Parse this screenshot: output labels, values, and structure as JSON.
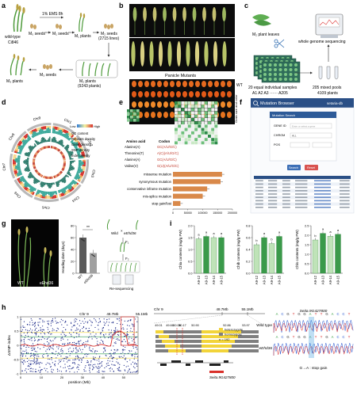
{
  "panels": {
    "a": {
      "letter": "a",
      "wild_type": "wild-type",
      "cultivar": "Ci846",
      "ems": "1% EMS 8h",
      "m0_seeds": "M₀ seeds",
      "m1_seeds": "M₁ seeds",
      "m1_plants": "M₁ plants",
      "m2_seeds": "M₂ seeds",
      "m2_lines": "(2715 lines)",
      "m3_plants": "M₃ plants",
      "m3_seeds": "M₃ seeds",
      "m2_plants": "M₂ plants",
      "m2_count": "(9243 plants)"
    },
    "b": {
      "letter": "b",
      "panicle_mutants": "Panicle Mutants",
      "wt": "WT",
      "side": "Grain size and color"
    },
    "c": {
      "letter": "c",
      "leaves": "M₂ plant leaves",
      "pools_left": "20 equal individual samples",
      "pools_ids": "A1 A2 A3 ······ A205",
      "pools_right": "205 mixed pools",
      "plants": "4109 plants",
      "wgs": "whole genome sequencing"
    },
    "d": {
      "letter": "d",
      "chromosomes": [
        "Chr1",
        "Chr2",
        "Chr3",
        "Chr4",
        "Chr5",
        "Chr6",
        "Chr7",
        "Chr8",
        "Chr9"
      ],
      "legend_low": "Low",
      "legend_high": "High",
      "tracks": [
        "GC content",
        "Repeats density",
        "Gene density",
        "SNP density",
        "Indel density"
      ]
    },
    "e": {
      "letter": "e",
      "amino_acid": "Amino acid",
      "codon": "Codon",
      "rows": [
        {
          "aa": "Alanine(A)",
          "codon": "GC(A/U/G/C)"
        },
        {
          "aa": "Threonine(T)",
          "codon": "A(C)(A/U/G/C)"
        },
        {
          "aa": "Alanine(A)",
          "codon": "GC(A/U/G/C)"
        },
        {
          "aa": "Valine(V)",
          "codon": "G(U)(A/U/G/C)"
        }
      ],
      "xaxis_ticks": [
        "0",
        "50000",
        "100000",
        "150000",
        "200000"
      ]
    },
    "f": {
      "letter": "f",
      "browser_title": "Mutation Browser",
      "logo": "setaria-db",
      "search_head": "Mutation Search",
      "gene_label": "GENE ID",
      "gene_placeholder": "Enter or select a gene",
      "chrom_label": "CHROM",
      "chrom_value": "ALL",
      "pos_label": "POS",
      "search_btn": "Search",
      "reset_btn": "Reset"
    },
    "g": {
      "letter": "g",
      "wt": "WT",
      "mut": "eEhd36",
      "ylabel": "Heading date (days)",
      "sig": "**",
      "y_ticks": [
        "0",
        "20",
        "40",
        "60",
        "80"
      ],
      "x_wt": "WT",
      "x_mut": "eEhd36",
      "cross_wild": "Wild",
      "cross_mut": "eEhd36",
      "f1": "F₁",
      "f2": "F₂",
      "reseq": "Re-sequencing"
    },
    "h": {
      "letter": "h",
      "ylabel": "ΔSNP-index",
      "xlabel": "position (Mb)",
      "x_ticks": [
        "0",
        "10",
        "20",
        "30",
        "40",
        "50"
      ],
      "y_ticks": [
        "-1",
        "-0.5",
        "0",
        "0.5",
        "1"
      ],
      "chr": "Chr 9",
      "mark1": "48.7Mb",
      "mark2": "55.1Mb",
      "zoom_chr": "Chr 9",
      "zoom_left": "48.7Mb",
      "zoom_right": "55.1Mb",
      "positions_top": [
        "49.01",
        "49.66",
        "50.08",
        "50.17",
        "50.90",
        "52.86",
        "53.97"
      ],
      "leg_het": "heterozygote",
      "leg_hom": "homozygote",
      "leg_n": "n = 192",
      "gene": "Seita.9G427800",
      "seq_gene": "Seita.9G427800",
      "wild_type": "Wild type",
      "mutant": "eEhd36",
      "stop_gain": "G→A : stop gain"
    },
    "i": {
      "letter": "i",
      "ylabels": [
        "Chla contents (mg/g FW)",
        "Chlb contents (mg/g FW)",
        "Chls contents (mg/g FW)"
      ],
      "y_ticks_a": [
        "0.0",
        "0.5",
        "1.0",
        "1.5",
        "2.0"
      ],
      "y_ticks_b": [
        "0.0",
        "0.2",
        "0.4",
        "0.6",
        "0.8"
      ],
      "y_ticks_c": [
        "0.0",
        "0.5",
        "1.0",
        "1.5",
        "2.0",
        "2.5"
      ]
    }
  },
  "chart_data": [
    {
      "type": "bar",
      "panel": "e",
      "categories": [
        "missense mutation",
        "synonymous mutation",
        "conservative inframe mutation",
        "mis-splice mutation",
        "stop gain/lost"
      ],
      "values": [
        165000,
        160000,
        115000,
        100000,
        25000
      ],
      "xlim": [
        0,
        200000
      ]
    },
    {
      "type": "bar",
      "panel": "g",
      "categories": [
        "WT",
        "eEhd36"
      ],
      "values": [
        60,
        34
      ],
      "ylim": [
        0,
        80
      ],
      "ylabel": "Heading date (days)"
    },
    {
      "type": "bar",
      "panel": "i",
      "ylabel": "Chla contents (mg/g FW)",
      "categories": [
        "A9-12",
        "A9-13",
        "A9-14",
        "A9-15"
      ],
      "values": [
        1.45,
        1.55,
        1.5,
        1.5
      ],
      "letters": [
        "a",
        "a",
        "a",
        "a"
      ],
      "ylim": [
        0,
        2.0
      ]
    },
    {
      "type": "bar",
      "panel": "i",
      "ylabel": "Chlb contents (mg/g FW)",
      "categories": [
        "A9-12",
        "A9-13",
        "A9-14",
        "A9-15"
      ],
      "values": [
        0.48,
        0.6,
        0.5,
        0.62
      ],
      "letters": [
        "b",
        "a",
        "b",
        "a"
      ],
      "ylim": [
        0,
        0.8
      ]
    },
    {
      "type": "bar",
      "panel": "i",
      "ylabel": "Chls contents (mg/g FW)",
      "categories": [
        "A9-12",
        "A9-13",
        "A9-14",
        "A9-15"
      ],
      "values": [
        1.75,
        2.1,
        1.95,
        2.05
      ],
      "letters": [
        "b",
        "a",
        "a",
        "a"
      ],
      "ylim": [
        0,
        2.5
      ]
    }
  ],
  "colors": {
    "green_dark": "#3a9a4a",
    "green_light": "#bfe3b8",
    "orange": "#d9894a",
    "teal": "#3aa89a",
    "red": "#c83a3a",
    "navy": "#1f2d8a",
    "yellow": "#f2d43a"
  }
}
